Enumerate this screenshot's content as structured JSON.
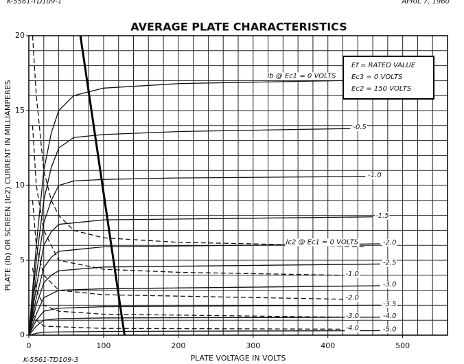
{
  "header_left": "K-5561-TD109-1",
  "date": "APRIL 7, 1960",
  "footer": "K-5561-TD109-3",
  "chart_data": {
    "type": "line",
    "title": "AVERAGE PLATE CHARACTERISTICS",
    "x_label": "PLATE VOLTAGE IN VOLTS",
    "y_label": "PLATE (Ib) OR SCREEN (Ic2) CURRENT IN MILLIAMPERES",
    "conditions": [
      "Ef = RATED VALUE",
      "Ec3 = 0 VOLTS",
      "Ec2 = 150 VOLTS"
    ],
    "xlim": [
      0,
      560
    ],
    "ylim": [
      0,
      20
    ],
    "xticks": [
      0,
      100,
      200,
      300,
      400,
      500
    ],
    "yticks": [
      0,
      5,
      10,
      15,
      20
    ],
    "xgrid": [
      0,
      20,
      40,
      60,
      80,
      100,
      120,
      140,
      160,
      180,
      200,
      220,
      240,
      260,
      280,
      300,
      320,
      340,
      360,
      380,
      400,
      420,
      440,
      460,
      480,
      500,
      520,
      540,
      560
    ],
    "ygrid": [
      0,
      1,
      2,
      3,
      4,
      5,
      6,
      7,
      8,
      9,
      10,
      11,
      12,
      13,
      14,
      15,
      16,
      17,
      18,
      19,
      20
    ],
    "grid": true,
    "series": [
      {
        "name": "Ib @ Ec1 = 0 VOLTS",
        "color": "#111",
        "style": "solid",
        "x": [
          0,
          10,
          20,
          30,
          40,
          60,
          100,
          200,
          300,
          420
        ],
        "values": [
          0,
          6,
          11,
          13.5,
          15,
          16,
          16.5,
          16.8,
          16.9,
          17
        ]
      },
      {
        "name": "-0.5",
        "color": "#111",
        "style": "solid",
        "x": [
          0,
          10,
          20,
          30,
          40,
          60,
          100,
          200,
          430
        ],
        "values": [
          0,
          5,
          9,
          11.2,
          12.5,
          13.2,
          13.4,
          13.6,
          13.8
        ]
      },
      {
        "name": "-1.0",
        "color": "#111",
        "style": "solid",
        "x": [
          0,
          10,
          20,
          30,
          40,
          60,
          100,
          200,
          450
        ],
        "values": [
          0,
          4,
          7.5,
          9,
          10,
          10.3,
          10.4,
          10.5,
          10.6
        ]
      },
      {
        "name": "-1.5",
        "color": "#111",
        "style": "solid",
        "x": [
          0,
          10,
          20,
          30,
          40,
          100,
          460
        ],
        "values": [
          0,
          3.2,
          6,
          6.9,
          7.4,
          7.7,
          7.9
        ]
      },
      {
        "name": "-2.0",
        "color": "#111",
        "style": "solid",
        "x": [
          0,
          10,
          20,
          30,
          40,
          100,
          470
        ],
        "values": [
          0,
          2.5,
          4.5,
          5.2,
          5.6,
          5.9,
          6.1
        ]
      },
      {
        "name": "-2.5",
        "color": "#111",
        "style": "solid",
        "x": [
          0,
          10,
          20,
          30,
          40,
          100,
          470
        ],
        "values": [
          0,
          2,
          3.5,
          4,
          4.3,
          4.55,
          4.75
        ]
      },
      {
        "name": "-3.0",
        "color": "#111",
        "style": "solid",
        "x": [
          0,
          10,
          20,
          40,
          100,
          470
        ],
        "values": [
          0,
          1.4,
          2.5,
          3,
          3.1,
          3.3
        ]
      },
      {
        "name": "-3.5",
        "color": "#111",
        "style": "solid",
        "x": [
          0,
          10,
          20,
          40,
          100,
          470
        ],
        "values": [
          0,
          1,
          1.6,
          1.8,
          1.9,
          2
        ]
      },
      {
        "name": "-4.0",
        "color": "#111",
        "style": "solid",
        "x": [
          0,
          10,
          20,
          40,
          100,
          470
        ],
        "values": [
          0,
          0.6,
          1,
          1.1,
          1.15,
          1.2
        ]
      },
      {
        "name": "-5.0",
        "color": "#111",
        "style": "solid",
        "x": [
          0,
          10,
          20,
          100,
          470
        ],
        "values": [
          0,
          0.12,
          0.2,
          0.25,
          0.3
        ]
      },
      {
        "name": "Ic2 @ Ec1 = 0 VOLTS",
        "color": "#111",
        "style": "dashed",
        "x": [
          5,
          10,
          20,
          30,
          40,
          60,
          100,
          200,
          300,
          450
        ],
        "values": [
          20,
          16,
          11,
          9,
          8,
          7,
          6.5,
          6.2,
          6.1,
          5.9
        ]
      },
      {
        "name": "-1.0",
        "color": "#111",
        "style": "dashed",
        "x": [
          5,
          10,
          20,
          40,
          100,
          200,
          420
        ],
        "values": [
          14,
          10,
          7,
          5,
          4.4,
          4.2,
          4
        ]
      },
      {
        "name": "-2.0",
        "color": "#111",
        "style": "dashed",
        "x": [
          5,
          10,
          20,
          40,
          100,
          420
        ],
        "values": [
          9,
          6,
          4,
          3,
          2.7,
          2.4
        ]
      },
      {
        "name": "-3.0",
        "color": "#111",
        "style": "dashed",
        "x": [
          5,
          10,
          20,
          40,
          100,
          420
        ],
        "values": [
          4.5,
          3,
          2,
          1.6,
          1.4,
          1.2
        ]
      },
      {
        "name": "-4.0",
        "color": "#111",
        "style": "dashed",
        "x": [
          5,
          10,
          20,
          100,
          420
        ],
        "values": [
          1.5,
          1,
          0.6,
          0.45,
          0.4
        ]
      }
    ],
    "load_line": {
      "color": "#000",
      "x": [
        69,
        128
      ],
      "values": [
        20,
        0
      ]
    }
  }
}
